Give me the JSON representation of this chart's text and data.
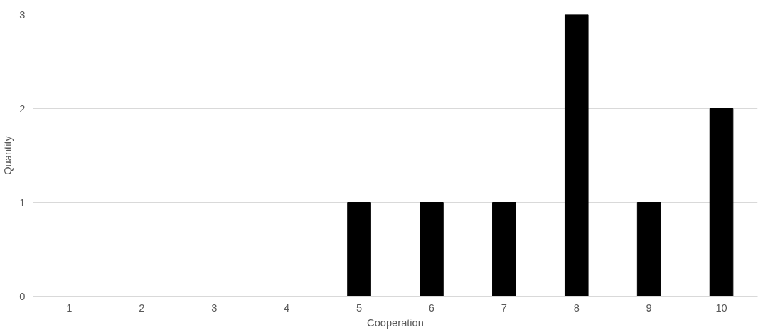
{
  "chart_data": {
    "type": "bar",
    "xlabel": "Cooperation",
    "ylabel": "Quantity",
    "categories": [
      "1",
      "2",
      "3",
      "4",
      "5",
      "6",
      "7",
      "8",
      "9",
      "10"
    ],
    "values": [
      0,
      0,
      0,
      0,
      1,
      1,
      1,
      3,
      1,
      2
    ],
    "color": "#000000",
    "ylim": [
      0,
      3
    ],
    "yticks": [
      0,
      1,
      2,
      3
    ],
    "grid": "y"
  }
}
